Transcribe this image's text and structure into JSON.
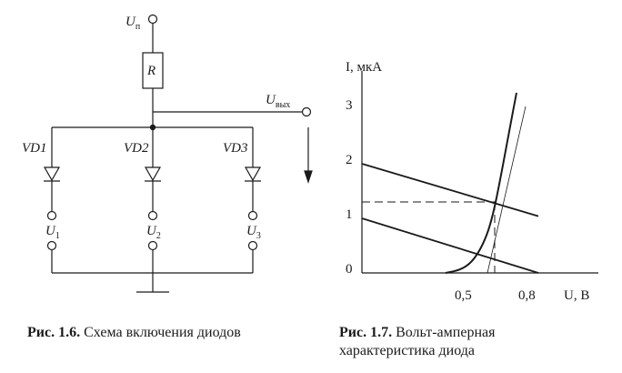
{
  "circuit": {
    "supply_label": "U",
    "supply_sub": "п",
    "resistor_label": "R",
    "output_label": "U",
    "output_sub": "вых",
    "diodes": [
      {
        "label": "VD1",
        "input_label": "U",
        "input_sub": "1"
      },
      {
        "label": "VD2",
        "input_label": "U",
        "input_sub": "2"
      },
      {
        "label": "VD3",
        "input_label": "U",
        "input_sub": "3"
      }
    ]
  },
  "chart_data": {
    "type": "line",
    "ylabel": "I, мкА",
    "xlabel": "U, В",
    "y_ticks": [
      "0",
      "1",
      "2",
      "3"
    ],
    "x_ticks": [
      "0,5",
      "0,8"
    ],
    "series": [
      {
        "points": [
          [
            0.46,
            0.0
          ],
          [
            0.55,
            0.06
          ],
          [
            0.62,
            0.25
          ],
          [
            0.68,
            0.62
          ],
          [
            0.72,
            1.05
          ],
          [
            0.76,
            1.7
          ],
          [
            0.81,
            2.6
          ],
          [
            0.85,
            3.3
          ]
        ]
      },
      {
        "points": [
          [
            0.0,
            2.0
          ],
          [
            0.97,
            1.04
          ]
        ]
      },
      {
        "points": [
          [
            0.0,
            1.0
          ],
          [
            0.97,
            0.0
          ]
        ]
      }
    ],
    "guide_level": {
      "x": 0.73,
      "y": 1.3
    }
  },
  "captions": {
    "fig1_number": "Рис. 1.6.",
    "fig1_text": "Схема включения диодов",
    "fig2_number": "Рис. 1.7.",
    "fig2_text_line1": "Вольт-амперная",
    "fig2_text_line2": "характеристика диода"
  }
}
